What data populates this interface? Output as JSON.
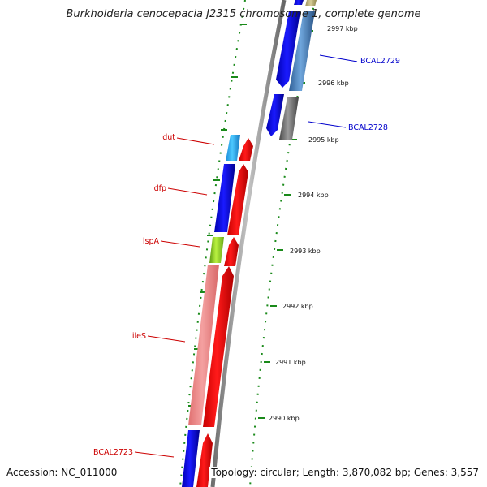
{
  "title": "Burkholderia cenocepacia J2315 chromosome 1, complete genome",
  "accession": "Accession: NC_011000",
  "topology": "Topology: circular; Length: 3,870,082 bp; Genes: 3,557",
  "colors": {
    "forward_label": "#cc0000",
    "reverse_label": "#0000cc",
    "tick": "#1a8a1a",
    "backbone": "#8c8c8c"
  },
  "scale_labels": [
    "2997 kbp",
    "2996 kbp",
    "2995 kbp",
    "2994 kbp",
    "2993 kbp",
    "2992 kbp",
    "2991 kbp",
    "2990 kbp"
  ],
  "left_genes": [
    {
      "name": "dut",
      "color": "#29b6f6"
    },
    {
      "name": "dfp",
      "color": "#0000ee"
    },
    {
      "name": "lspA",
      "color": "#a5e632"
    },
    {
      "name": "ileS",
      "color": "#f08080"
    },
    {
      "name": "BCAL2723",
      "color": "#0000ee"
    }
  ],
  "right_genes": [
    {
      "name": "BCAL2729",
      "color": "#4a86c8"
    },
    {
      "name": "BCAL2728",
      "color": "#6e6e6e"
    }
  ]
}
